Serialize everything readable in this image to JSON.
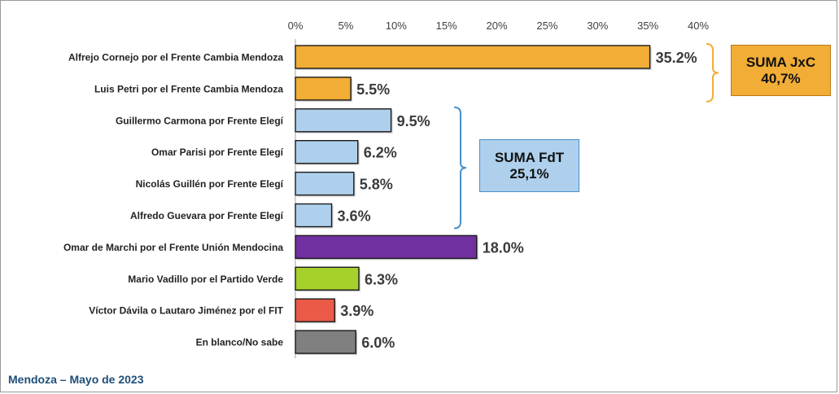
{
  "chart_data": {
    "type": "bar",
    "orientation": "horizontal",
    "categories": [
      "Alfrejo Cornejo por el Frente Cambia Mendoza",
      "Luis Petri por el Frente Cambia Mendoza",
      "Guillermo Carmona por Frente Elegí",
      "Omar Parisi por Frente Elegí",
      "Nicolás Guillén por Frente Elegí",
      "Alfredo Guevara por Frente Elegí",
      "Omar de Marchi por el Frente Unión Mendocina",
      "Mario Vadillo por el Partido Verde",
      "Víctor Dávila o Lautaro Jiménez por el FIT",
      "En blanco/No sabe"
    ],
    "values": [
      35.2,
      5.5,
      9.5,
      6.2,
      5.8,
      3.6,
      18.0,
      6.3,
      3.9,
      6.0
    ],
    "data_labels": [
      "35.2%",
      "5.5%",
      "9.5%",
      "6.2%",
      "5.8%",
      "3.6%",
      "18.0%",
      "6.3%",
      "3.9%",
      "6.0%"
    ],
    "colors": [
      "#f2ad36",
      "#f2ad36",
      "#aed0ec",
      "#aed0ec",
      "#aed0ec",
      "#aed0ec",
      "#7030a0",
      "#a6d12c",
      "#ea5a47",
      "#808080"
    ],
    "xlim": [
      0,
      40
    ],
    "x_ticks": [
      0,
      5,
      10,
      15,
      20,
      25,
      30,
      35,
      40
    ],
    "x_tick_labels": [
      "0%",
      "5%",
      "10%",
      "15%",
      "20%",
      "25%",
      "30%",
      "35%",
      "40%"
    ],
    "axis_position": "top",
    "grid": false,
    "title": "",
    "xlabel": "",
    "ylabel": ""
  },
  "annotations": {
    "jxc": {
      "line1": "SUMA JxC",
      "line2": "40,7%",
      "color": "#f2ad36",
      "group": [
        0,
        1
      ]
    },
    "fdt": {
      "line1": "SUMA FdT",
      "line2": "25,1%",
      "color": "#aed0ec",
      "group": [
        2,
        5
      ]
    }
  },
  "footer": {
    "text": "Mendoza – Mayo de 2023"
  }
}
